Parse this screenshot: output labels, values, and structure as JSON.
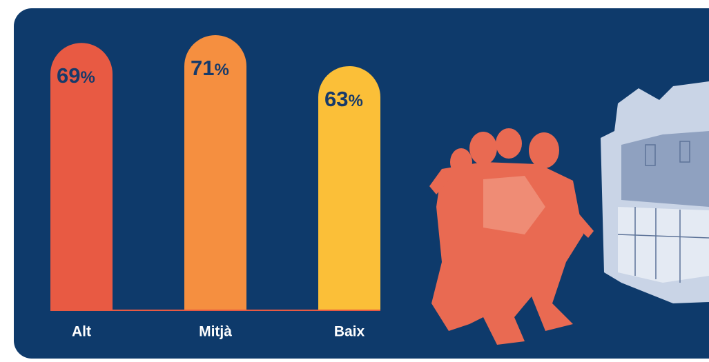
{
  "chart_data": {
    "type": "bar",
    "categories": [
      "Alt",
      "Mitjà",
      "Baix"
    ],
    "values": [
      69,
      71,
      63
    ],
    "value_labels": [
      "69%",
      "71%",
      "63%"
    ],
    "colors": [
      "#e85a43",
      "#f58f40",
      "#fbbf38"
    ]
  }
}
